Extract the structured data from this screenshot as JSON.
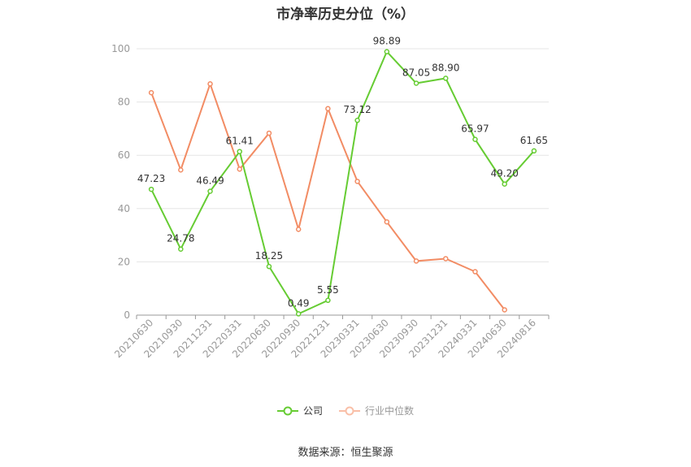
{
  "title": "市净率历史分位（%）",
  "source_text": "数据来源：恒生聚源",
  "colors": {
    "company": "#66cc33",
    "industry": "#f28c64",
    "grid": "#e5e5e5",
    "axis": "#999999"
  },
  "legend": {
    "company": "公司",
    "industry": "行业中位数"
  },
  "chart_data": {
    "type": "line",
    "title": "市净率历史分位（%）",
    "xlabel": "",
    "ylabel": "",
    "ylim": [
      0,
      100
    ],
    "yticks": [
      0,
      20,
      40,
      60,
      80,
      100
    ],
    "grid": true,
    "legend_position": "bottom",
    "categories": [
      "20210630",
      "20210930",
      "20211231",
      "20220331",
      "20220630",
      "20220930",
      "20221231",
      "20230331",
      "20230630",
      "20230930",
      "20231231",
      "20240331",
      "20240630",
      "20240816"
    ],
    "series": [
      {
        "name": "公司",
        "values": [
          47.23,
          24.78,
          46.49,
          61.41,
          18.25,
          0.49,
          5.55,
          73.12,
          98.89,
          87.05,
          88.9,
          65.97,
          49.2,
          61.65
        ],
        "labels": [
          "47.23",
          "24.78",
          "46.49",
          "61.41",
          "18.25",
          "0.49",
          "5.55",
          "73.12",
          "98.89",
          "87.05",
          "88.90",
          "65.97",
          "49.20",
          "61.65"
        ]
      },
      {
        "name": "行业中位数",
        "values": [
          83.5,
          54.5,
          86.8,
          54.8,
          68.3,
          32.2,
          77.5,
          50.2,
          35.0,
          20.3,
          21.2,
          16.3,
          2.0,
          null
        ]
      }
    ]
  }
}
